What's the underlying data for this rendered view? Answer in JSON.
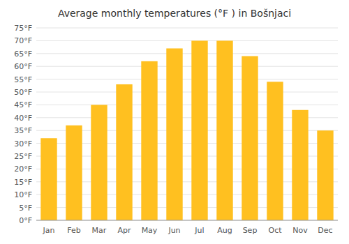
{
  "chart_data": {
    "type": "bar",
    "title": "Average monthly temperatures (°F ) in Bošnjaci",
    "categories": [
      "Jan",
      "Feb",
      "Mar",
      "Apr",
      "May",
      "Jun",
      "Jul",
      "Aug",
      "Sep",
      "Oct",
      "Nov",
      "Dec"
    ],
    "values": [
      32,
      37,
      45,
      53,
      62,
      67,
      70,
      70,
      64,
      54,
      43,
      35
    ],
    "color": "#FFC020",
    "ylim": [
      0,
      75
    ],
    "yticks": [
      {
        "value": 0,
        "label": "0°F"
      },
      {
        "value": 5,
        "label": "5°F"
      },
      {
        "value": 10,
        "label": "10°F"
      },
      {
        "value": 15,
        "label": "15°F"
      },
      {
        "value": 20,
        "label": "20°F"
      },
      {
        "value": 25,
        "label": "25°F"
      },
      {
        "value": 30,
        "label": "30°F"
      },
      {
        "value": 35,
        "label": "35°F"
      },
      {
        "value": 40,
        "label": "40°F"
      },
      {
        "value": 45,
        "label": "45°F"
      },
      {
        "value": 50,
        "label": "50°F"
      },
      {
        "value": 55,
        "label": "55°F"
      },
      {
        "value": 60,
        "label": "60°F"
      },
      {
        "value": 65,
        "label": "65°F"
      },
      {
        "value": 70,
        "label": "70°F"
      },
      {
        "value": 75,
        "label": "75°F"
      }
    ],
    "grid": true
  }
}
